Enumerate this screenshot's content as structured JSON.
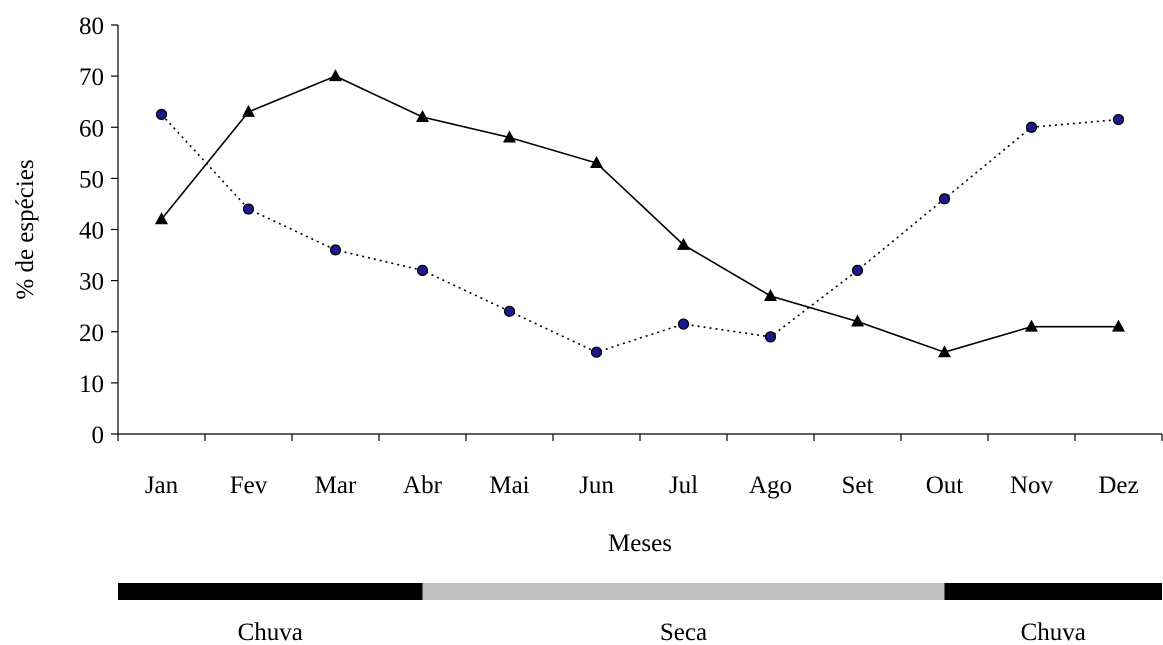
{
  "chart_data": {
    "type": "line",
    "title": "",
    "xlabel": "Meses",
    "ylabel": "% de espécies",
    "ylim": [
      0,
      80
    ],
    "yticks": [
      0,
      10,
      20,
      30,
      40,
      50,
      60,
      70,
      80
    ],
    "grid": false,
    "legend": "none",
    "categories": [
      "Jan",
      "Fev",
      "Mar",
      "Abr",
      "Mai",
      "Jun",
      "Jul",
      "Ago",
      "Set",
      "Out",
      "Nov",
      "Dez"
    ],
    "series": [
      {
        "marker": "triangle",
        "line_style": "solid",
        "color": "#000000",
        "values": [
          42,
          63,
          70,
          62,
          58,
          53,
          37,
          27,
          22,
          16,
          21,
          21
        ]
      },
      {
        "marker": "circle",
        "line_style": "dotted",
        "color": "#000000",
        "marker_fill": "#1a1a8c",
        "values": [
          62.5,
          44,
          36,
          32,
          24,
          16,
          21.5,
          19,
          32,
          46,
          60,
          61.5
        ]
      }
    ]
  },
  "seasons": [
    {
      "label": "Chuva",
      "start_month": "Jan",
      "end_month": "Abr",
      "color": "#000000"
    },
    {
      "label": "Seca",
      "start_month": "Abr",
      "end_month": "Out",
      "color": "#c0c0c0"
    },
    {
      "label": "Chuva",
      "start_month": "Out",
      "end_month": "Dez",
      "color": "#000000"
    }
  ]
}
